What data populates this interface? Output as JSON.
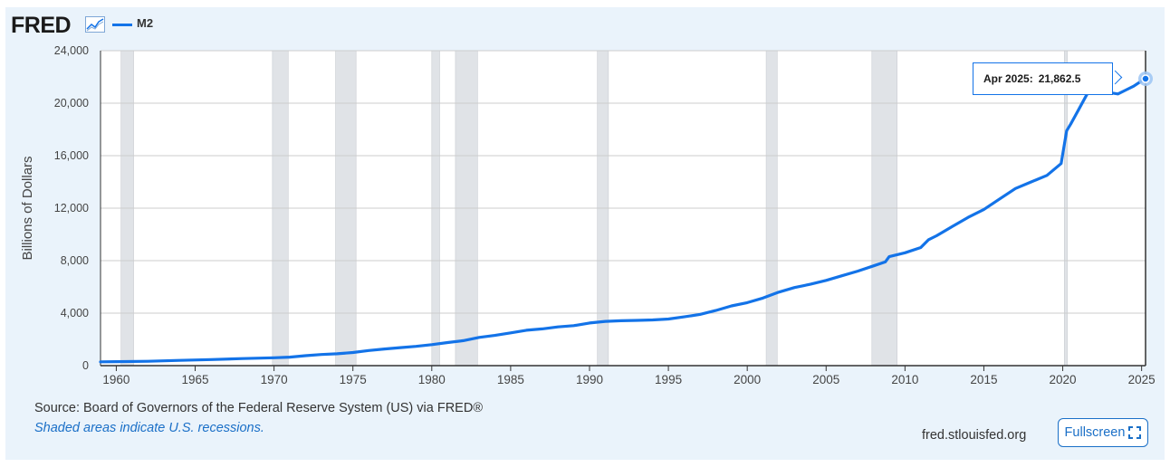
{
  "header": {
    "logo_text": "FRED",
    "logo_icon": "chart-line-icon",
    "legend_label": "M2"
  },
  "tooltip": {
    "date": "Apr 2025:",
    "value": "21,862.5"
  },
  "footer": {
    "source": "Source: Board of Governors of the Federal Reserve System (US) via FRED®",
    "recession_note": "Shaded areas indicate U.S. recessions.",
    "site": "fred.stlouisfed.org",
    "fullscreen_label": "Fullscreen",
    "fullscreen_icon": "expand-icon"
  },
  "colors": {
    "series": "#1373e8",
    "recession": "#e0e3e7",
    "grid": "#cccccc",
    "panel": "#eaf3fb"
  },
  "chart_data": {
    "type": "line",
    "title": "",
    "xlabel": "",
    "ylabel": "Billions of Dollars",
    "xlim": [
      1959.0,
      2025.25
    ],
    "ylim": [
      0,
      24000
    ],
    "yticks": [
      0,
      4000,
      8000,
      12000,
      16000,
      20000,
      24000
    ],
    "ytick_labels": [
      "0",
      "4,000",
      "8,000",
      "12,000",
      "16,000",
      "20,000",
      "24,000"
    ],
    "xticks": [
      1960,
      1965,
      1970,
      1975,
      1980,
      1985,
      1990,
      1995,
      2000,
      2005,
      2010,
      2015,
      2020,
      2025
    ],
    "xtick_labels": [
      "1960",
      "1965",
      "1970",
      "1975",
      "1980",
      "1985",
      "1990",
      "1995",
      "2000",
      "2005",
      "2010",
      "2015",
      "2020",
      "2025"
    ],
    "grid": true,
    "legend": "top-left",
    "recessions": [
      [
        1960.3,
        1961.1
      ],
      [
        1969.9,
        1970.9
      ],
      [
        1973.9,
        1975.2
      ],
      [
        1980.0,
        1980.5
      ],
      [
        1981.5,
        1982.9
      ],
      [
        1990.5,
        1991.2
      ],
      [
        2001.2,
        2001.9
      ],
      [
        2007.9,
        2009.5
      ],
      [
        2020.1,
        2020.3
      ]
    ],
    "series": [
      {
        "name": "M2",
        "x": [
          1959.0,
          1960.0,
          1962.0,
          1964.0,
          1966.0,
          1968.0,
          1970.0,
          1971.0,
          1972.0,
          1973.0,
          1974.0,
          1975.0,
          1976.0,
          1977.0,
          1978.0,
          1979.0,
          1980.0,
          1981.0,
          1982.0,
          1983.0,
          1984.0,
          1985.0,
          1986.0,
          1987.0,
          1988.0,
          1989.0,
          1990.0,
          1991.0,
          1992.0,
          1993.0,
          1994.0,
          1995.0,
          1996.0,
          1997.0,
          1998.0,
          1999.0,
          2000.0,
          2001.0,
          2002.0,
          2003.0,
          2004.0,
          2005.0,
          2006.0,
          2007.0,
          2008.0,
          2008.75,
          2009.0,
          2010.0,
          2011.0,
          2011.5,
          2012.0,
          2013.0,
          2014.0,
          2015.0,
          2016.0,
          2017.0,
          2018.0,
          2019.0,
          2019.9,
          2020.25,
          2020.5,
          2021.0,
          2021.5,
          2022.0,
          2022.3,
          2022.7,
          2023.0,
          2023.5,
          2024.0,
          2024.5,
          2025.0,
          2025.25
        ],
        "y": [
          290,
          300,
          330,
          400,
          460,
          540,
          600,
          650,
          760,
          850,
          900,
          1000,
          1150,
          1270,
          1370,
          1470,
          1600,
          1760,
          1900,
          2150,
          2300,
          2500,
          2700,
          2800,
          2950,
          3050,
          3250,
          3370,
          3420,
          3450,
          3480,
          3550,
          3720,
          3900,
          4200,
          4550,
          4800,
          5150,
          5600,
          5950,
          6200,
          6500,
          6850,
          7200,
          7600,
          7900,
          8300,
          8600,
          9000,
          9600,
          9900,
          10600,
          11300,
          11900,
          12700,
          13500,
          14000,
          14500,
          15400,
          17900,
          18400,
          19500,
          20600,
          21600,
          21700,
          21400,
          20800,
          20700,
          21000,
          21300,
          21700,
          21862.5
        ]
      }
    ]
  }
}
